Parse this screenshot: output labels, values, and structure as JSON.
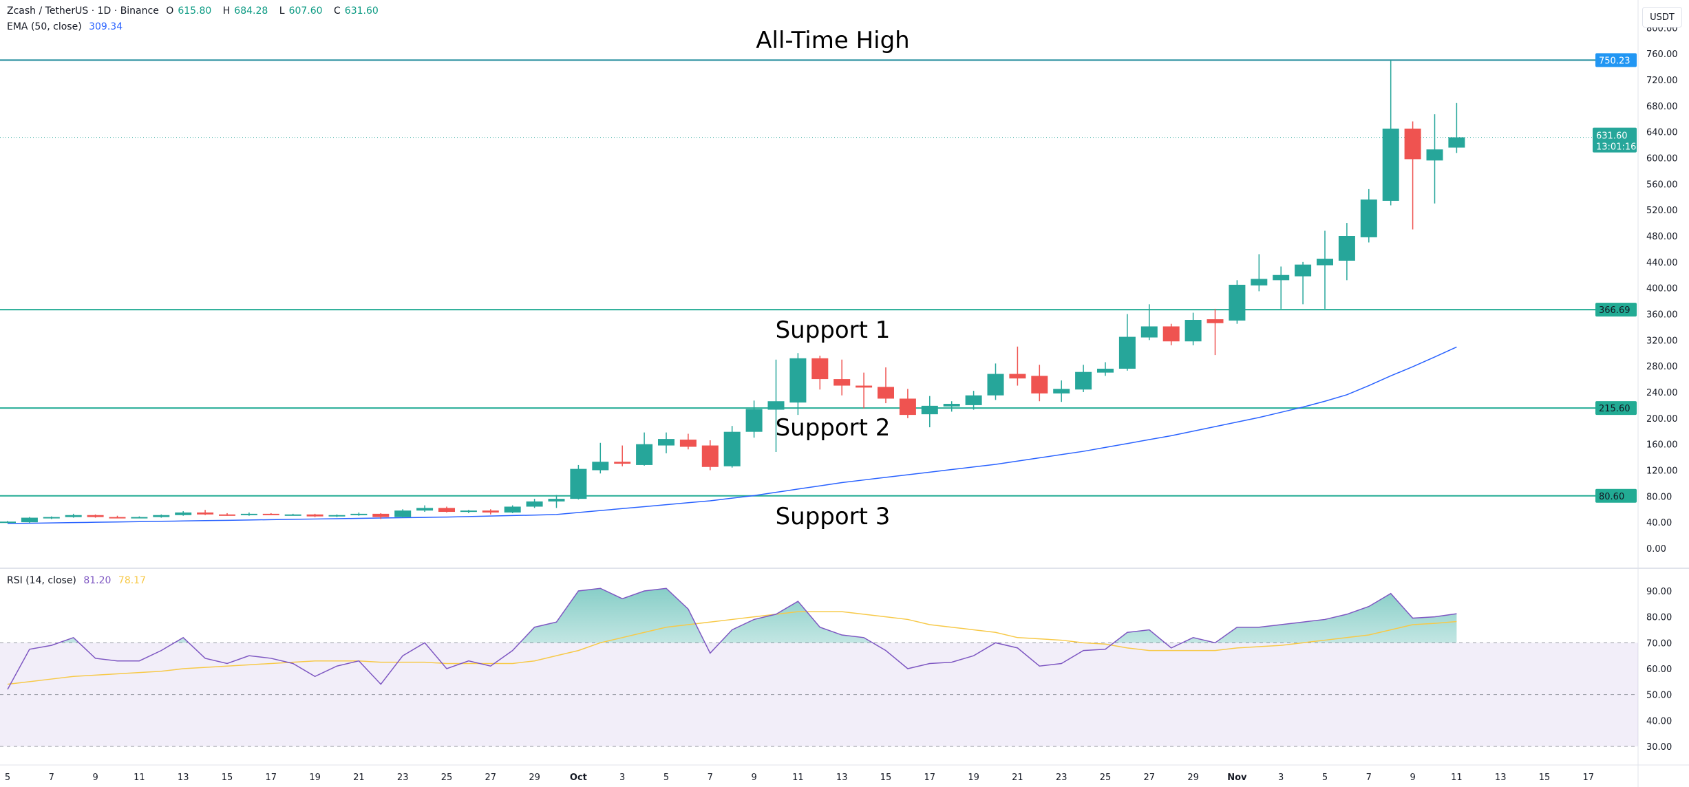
{
  "header": {
    "symbol": "Zcash / TetherUS · 1D · Binance",
    "open_label": "O",
    "open": "615.80",
    "high_label": "H",
    "high": "684.28",
    "low_label": "L",
    "low": "607.60",
    "close_label": "C",
    "close": "631.60",
    "ema_label": "EMA (50, close)",
    "ema_value": "309.34"
  },
  "rsi_legend": {
    "label": "RSI (14, close)",
    "rsi": "81.20",
    "ma": "78.17"
  },
  "currency": "USDT",
  "colors": {
    "up": "#26a69a",
    "down": "#ef5350",
    "ema": "#2962ff",
    "level": "#22ab94",
    "ath": "#2196f3",
    "rsi": "#7e57c2",
    "rsi_ma": "#f7c948"
  },
  "chart_data": [
    {
      "type": "candlestick",
      "title": "",
      "ylim": [
        0,
        800
      ],
      "price_ticks": [
        "0.00",
        "40.00",
        "80.00",
        "120.00",
        "160.00",
        "200.00",
        "240.00",
        "280.00",
        "320.00",
        "360.00",
        "400.00",
        "440.00",
        "480.00",
        "520.00",
        "560.00",
        "600.00",
        "640.00",
        "680.00",
        "720.00",
        "760.00",
        "800.00"
      ],
      "x_ticks": [
        "5",
        "7",
        "9",
        "11",
        "13",
        "15",
        "17",
        "19",
        "21",
        "23",
        "25",
        "27",
        "29",
        "Oct",
        "3",
        "5",
        "7",
        "9",
        "11",
        "13",
        "15",
        "17",
        "19",
        "21",
        "23",
        "25",
        "27",
        "29",
        "Nov",
        "3",
        "5",
        "7",
        "9",
        "11",
        "13",
        "15",
        "17"
      ],
      "candles_columns": [
        "date",
        "open",
        "high",
        "low",
        "close"
      ],
      "candles": [
        [
          "Sep 5",
          40,
          42,
          39,
          41
        ],
        [
          "Sep 6",
          40,
          48,
          39,
          47
        ],
        [
          "Sep 7",
          47,
          49,
          45,
          48
        ],
        [
          "Sep 8",
          48,
          53,
          47,
          51
        ],
        [
          "Sep 9",
          51,
          52,
          47,
          48
        ],
        [
          "Sep 10",
          48,
          50,
          47,
          47
        ],
        [
          "Sep 11",
          47,
          49,
          46,
          48
        ],
        [
          "Sep 12",
          48,
          52,
          47,
          51
        ],
        [
          "Sep 13",
          51,
          57,
          50,
          55
        ],
        [
          "Sep 14",
          55,
          59,
          51,
          52
        ],
        [
          "Sep 15",
          52,
          54,
          50,
          51
        ],
        [
          "Sep 16",
          51,
          55,
          50,
          53
        ],
        [
          "Sep 17",
          53,
          54,
          51,
          52
        ],
        [
          "Sep 18",
          52,
          53,
          51,
          52
        ],
        [
          "Sep 19",
          52,
          53,
          48,
          49
        ],
        [
          "Sep 20",
          49,
          52,
          48,
          51
        ],
        [
          "Sep 21",
          51,
          55,
          50,
          53
        ],
        [
          "Sep 22",
          53,
          54,
          45,
          48
        ],
        [
          "Sep 23",
          48,
          60,
          47,
          58
        ],
        [
          "Sep 24",
          58,
          66,
          56,
          62
        ],
        [
          "Sep 25",
          62,
          64,
          55,
          56
        ],
        [
          "Sep 26",
          56,
          59,
          54,
          58
        ],
        [
          "Sep 27",
          58,
          60,
          52,
          55
        ],
        [
          "Sep 28",
          55,
          66,
          54,
          64
        ],
        [
          "Sep 29",
          64,
          76,
          62,
          72
        ],
        [
          "Sep 30",
          72,
          82,
          62,
          76
        ],
        [
          "Oct 1",
          76,
          128,
          75,
          122
        ],
        [
          "Oct 2",
          120,
          162,
          115,
          133
        ],
        [
          "Oct 3",
          133,
          158,
          126,
          130
        ],
        [
          "Oct 4",
          128,
          178,
          127,
          160
        ],
        [
          "Oct 5",
          158,
          178,
          146,
          168
        ],
        [
          "Oct 6",
          167,
          176,
          152,
          156
        ],
        [
          "Oct 7",
          158,
          166,
          120,
          125
        ],
        [
          "Oct 8",
          126,
          188,
          124,
          179
        ],
        [
          "Oct 9",
          179,
          227,
          170,
          214
        ],
        [
          "Oct 10",
          213,
          290,
          148,
          226
        ],
        [
          "Oct 11",
          224,
          300,
          205,
          292
        ],
        [
          "Oct 12",
          292,
          296,
          244,
          260
        ],
        [
          "Oct 13",
          260,
          290,
          235,
          250
        ],
        [
          "Oct 14",
          250,
          270,
          215,
          247
        ],
        [
          "Oct 15",
          248,
          278,
          223,
          230
        ],
        [
          "Oct 16",
          230,
          245,
          200,
          205
        ],
        [
          "Oct 17",
          206,
          234,
          186,
          219
        ],
        [
          "Oct 18",
          218,
          226,
          210,
          222
        ],
        [
          "Oct 19",
          220,
          242,
          213,
          235
        ],
        [
          "Oct 20",
          235,
          284,
          228,
          268
        ],
        [
          "Oct 21",
          268,
          310,
          250,
          261
        ],
        [
          "Oct 22",
          265,
          282,
          226,
          238
        ],
        [
          "Oct 23",
          238,
          258,
          225,
          245
        ],
        [
          "Oct 24",
          244,
          282,
          240,
          271
        ],
        [
          "Oct 25",
          270,
          286,
          265,
          276
        ],
        [
          "Oct 26",
          276,
          360,
          273,
          325
        ],
        [
          "Oct 27",
          324,
          375,
          320,
          341
        ],
        [
          "Oct 28",
          341,
          345,
          312,
          318
        ],
        [
          "Oct 29",
          318,
          362,
          312,
          351
        ],
        [
          "Oct 30",
          352,
          368,
          297,
          346
        ],
        [
          "Oct 31",
          350,
          412,
          345,
          405
        ],
        [
          "Nov 1",
          404,
          452,
          395,
          414
        ],
        [
          "Nov 2",
          412,
          433,
          368,
          420
        ],
        [
          "Nov 3",
          418,
          440,
          375,
          436
        ],
        [
          "Nov 4",
          435,
          488,
          368,
          445
        ],
        [
          "Nov 5",
          442,
          500,
          412,
          480
        ],
        [
          "Nov 6",
          478,
          552,
          470,
          536
        ],
        [
          "Nov 7",
          534,
          750.23,
          527,
          645
        ],
        [
          "Nov 8",
          645,
          656,
          490,
          598
        ],
        [
          "Nov 9",
          596,
          667,
          530,
          613
        ],
        [
          "Nov 10",
          615.8,
          684.28,
          607.6,
          631.6
        ]
      ],
      "ema50": [
        38,
        38.5,
        39,
        39.5,
        40,
        40.5,
        41,
        41.5,
        42,
        42.5,
        43,
        43.5,
        44,
        44.5,
        45,
        45.5,
        46,
        46.5,
        47,
        47.5,
        48,
        48.8,
        49.5,
        50.3,
        51,
        52,
        55,
        58,
        61,
        64,
        67,
        70,
        73,
        77,
        81,
        86,
        91,
        96,
        101,
        105,
        109,
        113,
        117,
        121,
        125,
        129,
        134,
        139,
        144,
        149,
        155,
        161,
        167,
        173,
        180,
        187,
        194,
        201,
        209,
        217,
        226,
        236,
        250,
        265,
        279,
        294,
        309.34
      ],
      "levels": [
        {
          "label": "All-Time High",
          "value": 750.23,
          "badge": "750.23",
          "color": "#2196f3"
        },
        {
          "label": "Support 1",
          "value": 366.69,
          "badge": "366.69",
          "color": "#22ab94"
        },
        {
          "label": "Support 2",
          "value": 215.6,
          "badge": "215.60",
          "color": "#22ab94"
        },
        {
          "label": "Support 3",
          "value": 80.6,
          "badge": "80.60",
          "color": "#22ab94"
        }
      ],
      "last_price": {
        "value": 631.6,
        "badge": "631.60",
        "countdown": "13:01:16"
      }
    },
    {
      "type": "line",
      "title": "RSI (14, close)",
      "ylim": [
        25,
        95
      ],
      "ticks": [
        "30.00",
        "40.00",
        "50.00",
        "60.00",
        "70.00",
        "80.00",
        "90.00"
      ],
      "bands": {
        "upper": 70,
        "middle": 50,
        "lower": 30
      },
      "rsi": [
        52,
        67.5,
        69,
        72,
        64,
        63,
        63,
        67,
        72,
        64,
        62,
        65,
        64,
        62,
        57,
        61,
        63,
        54,
        65,
        70,
        60,
        63,
        61,
        67,
        76,
        78,
        90,
        91,
        87,
        90,
        91,
        83,
        66,
        75,
        79,
        81,
        86,
        76,
        73,
        72,
        67,
        60,
        62,
        62.5,
        65,
        70,
        68,
        61,
        62,
        67,
        67.5,
        74,
        75,
        68,
        72,
        70,
        76,
        76,
        77,
        78,
        79,
        81,
        84,
        89,
        79.5,
        80,
        81.2
      ],
      "rsi_ma": [
        54,
        55,
        56,
        57,
        57.5,
        58,
        58.5,
        59,
        60,
        60.5,
        61,
        61.5,
        62,
        62.5,
        63,
        63,
        63,
        62.5,
        62.5,
        62.5,
        62,
        62,
        62,
        62,
        63,
        65,
        67,
        70,
        72,
        74,
        76,
        77,
        78,
        79,
        80,
        81,
        82,
        82,
        82,
        81,
        80,
        79,
        77,
        76,
        75,
        74,
        72,
        71.5,
        71,
        70,
        69.5,
        68,
        67,
        67,
        67,
        67,
        68,
        68.5,
        69,
        70,
        71,
        72,
        73,
        75,
        77,
        77.5,
        78.17
      ]
    }
  ]
}
